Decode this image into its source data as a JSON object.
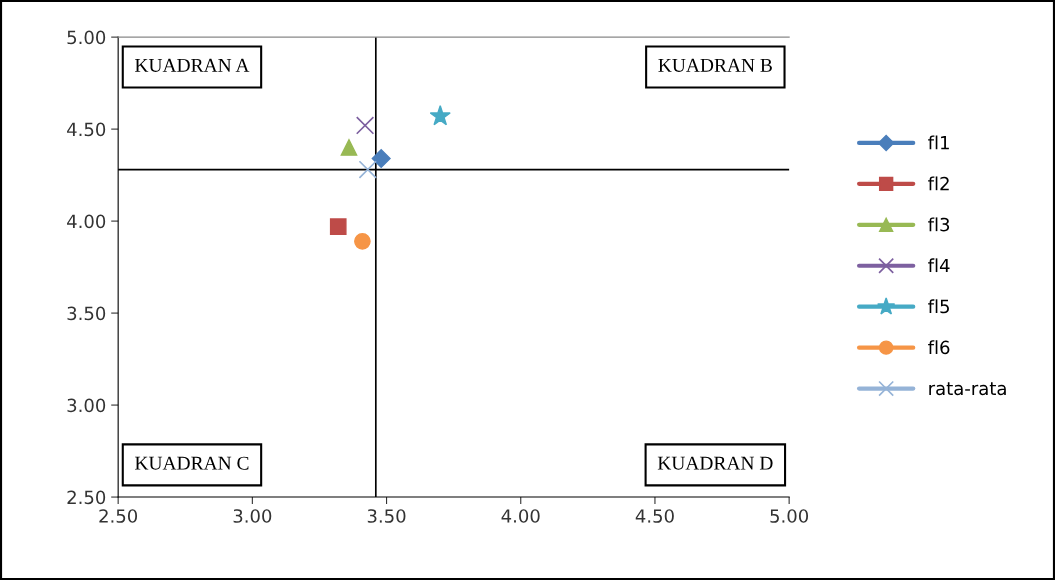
{
  "chart_data": {
    "type": "scatter",
    "series": [
      {
        "name": "fl1",
        "color": "#4a7ebb",
        "marker": "diamond",
        "x": [
          3.48
        ],
        "values": [
          4.34
        ]
      },
      {
        "name": "fl2",
        "color": "#be4b48",
        "marker": "square",
        "x": [
          3.32
        ],
        "values": [
          3.97
        ]
      },
      {
        "name": "fl3",
        "color": "#98b954",
        "marker": "triangle",
        "x": [
          3.36
        ],
        "values": [
          4.4
        ]
      },
      {
        "name": "fl4",
        "color": "#7d60a0",
        "marker": "cross",
        "x": [
          3.42
        ],
        "values": [
          4.52
        ]
      },
      {
        "name": "fl5",
        "color": "#46aac5",
        "marker": "star",
        "x": [
          3.7
        ],
        "values": [
          4.57
        ]
      },
      {
        "name": "fl6",
        "color": "#f69546",
        "marker": "circle",
        "x": [
          3.41
        ],
        "values": [
          3.89
        ]
      },
      {
        "name": "rata-rata",
        "color": "#95b3d7",
        "marker": "cross",
        "x": [
          3.43
        ],
        "values": [
          4.28
        ]
      }
    ],
    "ref_lines": [
      {
        "axis": "x",
        "value": 3.46,
        "color": "#000000"
      },
      {
        "axis": "y",
        "value": 4.28,
        "color": "#000000"
      }
    ],
    "annotations": [
      "KUADRAN A",
      "KUADRAN B",
      "KUADRAN C",
      "KUADRAN D"
    ],
    "xlim": [
      2.5,
      5.0
    ],
    "ylim": [
      2.5,
      5.0
    ],
    "xticks": [
      {
        "value": 2.5,
        "label": "2.50"
      },
      {
        "value": 3.0,
        "label": "3.00"
      },
      {
        "value": 3.5,
        "label": "3.50"
      },
      {
        "value": 4.0,
        "label": "4.00"
      },
      {
        "value": 4.5,
        "label": "4.50"
      },
      {
        "value": 5.0,
        "label": "5.00"
      }
    ],
    "yticks": [
      {
        "value": 2.5,
        "label": "2.50"
      },
      {
        "value": 3.0,
        "label": "3.00"
      },
      {
        "value": 3.5,
        "label": "3.50"
      },
      {
        "value": 4.0,
        "label": "4.00"
      },
      {
        "value": 4.5,
        "label": "4.50"
      },
      {
        "value": 5.0,
        "label": "5.00"
      }
    ],
    "grid": false,
    "legend": "right"
  }
}
